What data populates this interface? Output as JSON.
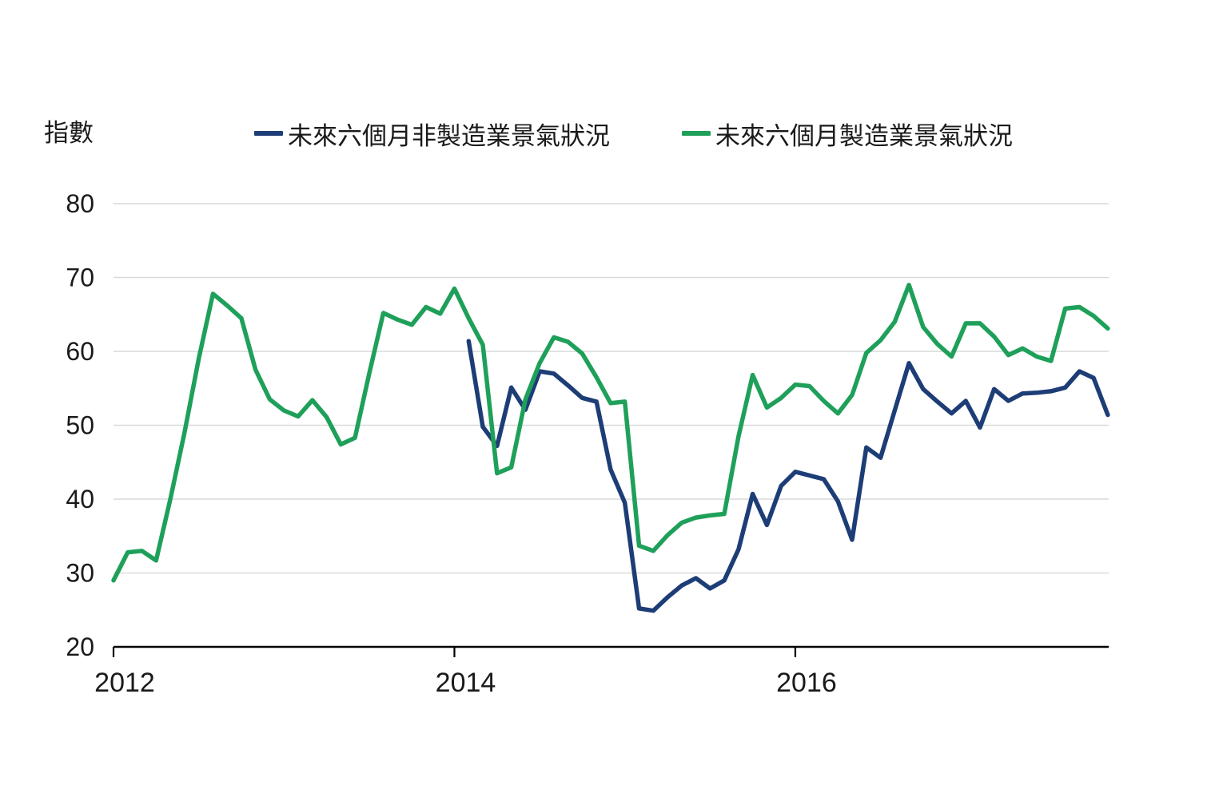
{
  "page": {
    "background": "#ffffff",
    "text_color": "#1a1a1a"
  },
  "y_axis_title": "指數",
  "legend": [
    {
      "label": "未來六個月非製造業景氣狀況",
      "color": "#1d3d76"
    },
    {
      "label": "未來六個月製造業景氣狀況",
      "color": "#1fa05a"
    }
  ],
  "chart_data": {
    "type": "line",
    "title": "",
    "ylabel": "指數",
    "xlabel": "",
    "ylim": [
      20,
      80
    ],
    "yticks": [
      80,
      70,
      60,
      50,
      40,
      30,
      20
    ],
    "grid": "horizontal light-gray, no vertical grid, black bottom axis",
    "legend_position": "top-center",
    "x_unit": "month",
    "x_start": "2012-01",
    "x_end": "2017-11",
    "xticks": [
      {
        "label": "2012",
        "month": 0
      },
      {
        "label": "2014",
        "month": 24
      },
      {
        "label": "2016",
        "month": 48
      }
    ],
    "series": [
      {
        "name": "未來六個月非製造業景氣狀況",
        "color": "#1d3d76",
        "start": "2014-02",
        "values": [
          null,
          null,
          null,
          null,
          null,
          null,
          null,
          null,
          null,
          null,
          null,
          null,
          null,
          null,
          null,
          null,
          null,
          null,
          null,
          null,
          null,
          null,
          null,
          null,
          null,
          61.4,
          49.8,
          47.2,
          55.1,
          52.1,
          57.3,
          57.0,
          55.4,
          53.7,
          53.2,
          44.0,
          39.5,
          25.2,
          24.9,
          26.7,
          28.3,
          29.3,
          27.9,
          29.0,
          33.2,
          40.7,
          36.5,
          41.8,
          43.7,
          43.2,
          42.7,
          39.7,
          34.5,
          47.0,
          45.6,
          52.0,
          58.4,
          54.9,
          53.2,
          51.6,
          53.3,
          49.7,
          54.9,
          53.3,
          54.3,
          54.4,
          54.6,
          55.1,
          57.3,
          56.4,
          51.4
        ]
      },
      {
        "name": "未來六個月製造業景氣狀況",
        "color": "#1fa05a",
        "start": "2012-01",
        "values": [
          29.0,
          32.8,
          33.0,
          31.7,
          40.0,
          49.0,
          59.0,
          67.8,
          66.2,
          64.5,
          57.5,
          53.5,
          52.0,
          51.2,
          53.4,
          51.1,
          47.4,
          48.3,
          57.0,
          65.2,
          64.3,
          63.6,
          66.0,
          65.1,
          68.5,
          64.5,
          60.9,
          43.5,
          44.3,
          53.5,
          58.4,
          61.9,
          61.3,
          59.7,
          56.5,
          53.0,
          53.2,
          33.7,
          33.0,
          35.1,
          36.8,
          37.5,
          37.8,
          38.0,
          48.5,
          56.8,
          52.4,
          53.7,
          55.5,
          55.3,
          53.3,
          51.6,
          54.1,
          59.8,
          61.5,
          64.0,
          69.0,
          63.3,
          61.0,
          59.3,
          63.8,
          63.8,
          62.0,
          59.5,
          60.4,
          59.3,
          58.7,
          65.8,
          66.0,
          64.8,
          63.1
        ]
      }
    ]
  }
}
